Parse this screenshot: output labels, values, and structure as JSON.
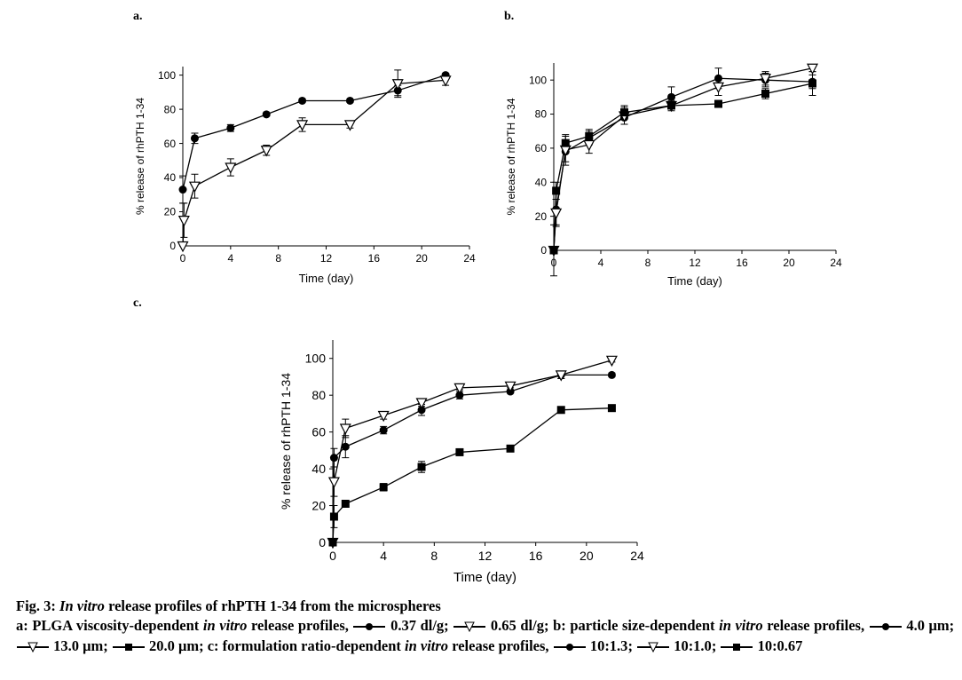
{
  "chart_data": [
    {
      "type": "line",
      "label": "a.",
      "x_label": "Time (day)",
      "y_label": "% release of rhPTH 1-34",
      "xlim": [
        0,
        24
      ],
      "xticks": [
        0,
        4,
        8,
        12,
        16,
        20,
        24
      ],
      "ylim": [
        0,
        105
      ],
      "yticks": [
        0,
        20,
        40,
        60,
        80,
        100
      ],
      "series": [
        {
          "name": "0.37 dl/g",
          "color": "#000000",
          "marker": "circle",
          "x": [
            0,
            1,
            4,
            7,
            10,
            14,
            18,
            22
          ],
          "values": [
            33,
            63,
            69,
            77,
            85,
            85,
            91,
            100
          ],
          "errors": [
            8,
            3,
            2,
            1,
            1,
            1,
            3,
            1
          ]
        },
        {
          "name": "0.65 dl/g",
          "color": "#000000",
          "marker": "triangle-down",
          "x": [
            0,
            0.1,
            1,
            4,
            7,
            10,
            14,
            18,
            22
          ],
          "values": [
            0,
            15,
            35,
            46,
            56,
            71,
            71,
            95,
            97
          ],
          "errors": [
            0,
            10,
            7,
            5,
            3,
            4,
            2,
            8,
            3
          ]
        }
      ]
    },
    {
      "type": "line",
      "label": "b.",
      "x_label": "Time (day)",
      "y_label": "% release of rhPTH 1-34",
      "xlim": [
        0,
        24
      ],
      "xticks": [
        0,
        4,
        8,
        12,
        16,
        20,
        24
      ],
      "ylim": [
        0,
        110
      ],
      "yticks": [
        0,
        20,
        40,
        60,
        80,
        100
      ],
      "series": [
        {
          "name": "4.0 μm",
          "color": "#000000",
          "marker": "circle",
          "x": [
            0,
            0.2,
            1,
            3,
            6,
            10,
            14,
            18,
            22
          ],
          "values": [
            0,
            24,
            58,
            66,
            78,
            90,
            101,
            100,
            99
          ],
          "errors": [
            0,
            9,
            6,
            4,
            4,
            6,
            6,
            4,
            4
          ]
        },
        {
          "name": "13.0 μm",
          "color": "#000000",
          "marker": "triangle-down",
          "x": [
            0,
            0.2,
            1,
            3,
            6,
            10,
            14,
            18,
            22
          ],
          "values": [
            0,
            22,
            59,
            62,
            79,
            85,
            96,
            101,
            107
          ],
          "errors": [
            15,
            8,
            9,
            5,
            5,
            3,
            5,
            4,
            2
          ]
        },
        {
          "name": "20.0 μm",
          "color": "#000000",
          "marker": "square",
          "x": [
            0,
            0.2,
            1,
            3,
            6,
            10,
            14,
            18,
            22
          ],
          "values": [
            0,
            35,
            63,
            67,
            81,
            85,
            86,
            92,
            98
          ],
          "errors": [
            0,
            5,
            4,
            4,
            4,
            2,
            2,
            3,
            7
          ]
        }
      ]
    },
    {
      "type": "line",
      "label": "c.",
      "x_label": "Time (day)",
      "y_label": "% release of rhPTH 1-34",
      "xlim": [
        0,
        24
      ],
      "xticks": [
        0,
        4,
        8,
        12,
        16,
        20,
        24
      ],
      "ylim": [
        0,
        110
      ],
      "yticks": [
        0,
        20,
        40,
        60,
        80,
        100
      ],
      "series": [
        {
          "name": "10:1.3",
          "color": "#000000",
          "marker": "circle",
          "x": [
            0,
            0.1,
            1,
            4,
            7,
            10,
            14,
            18,
            22
          ],
          "values": [
            0,
            46,
            52,
            61,
            72,
            80,
            82,
            91,
            91
          ],
          "errors": [
            0,
            5,
            6,
            2,
            3,
            2,
            1,
            2,
            1
          ]
        },
        {
          "name": "10:1.0",
          "color": "#000000",
          "marker": "triangle-down",
          "x": [
            0,
            0.1,
            1,
            4,
            7,
            10,
            14,
            18,
            22
          ],
          "values": [
            0,
            33,
            62,
            69,
            76,
            84,
            85,
            91,
            99
          ],
          "errors": [
            0,
            8,
            5,
            2,
            2,
            1,
            1,
            2,
            1
          ]
        },
        {
          "name": "10:0.67",
          "color": "#000000",
          "marker": "square",
          "x": [
            0,
            0.1,
            1,
            4,
            7,
            10,
            14,
            18,
            22
          ],
          "values": [
            0,
            14,
            21,
            30,
            41,
            49,
            51,
            72,
            73
          ],
          "errors": [
            0,
            6,
            1,
            2,
            3,
            1,
            1,
            1,
            1
          ]
        }
      ]
    }
  ],
  "caption": {
    "title": [
      "Fig. 3:",
      "In vitro",
      "release profiles of rhPTH 1-34 from the microspheres"
    ],
    "body": [
      "a: PLGA viscosity-dependent",
      "in vitro",
      "release profiles,",
      ";",
      ";",
      "b: particle size-dependent",
      "in vitro",
      "release profiles,",
      ";",
      ";",
      ";",
      "c: formulation ratio-dependent",
      "in vitro",
      "release profiles,",
      ";",
      ";"
    ]
  }
}
